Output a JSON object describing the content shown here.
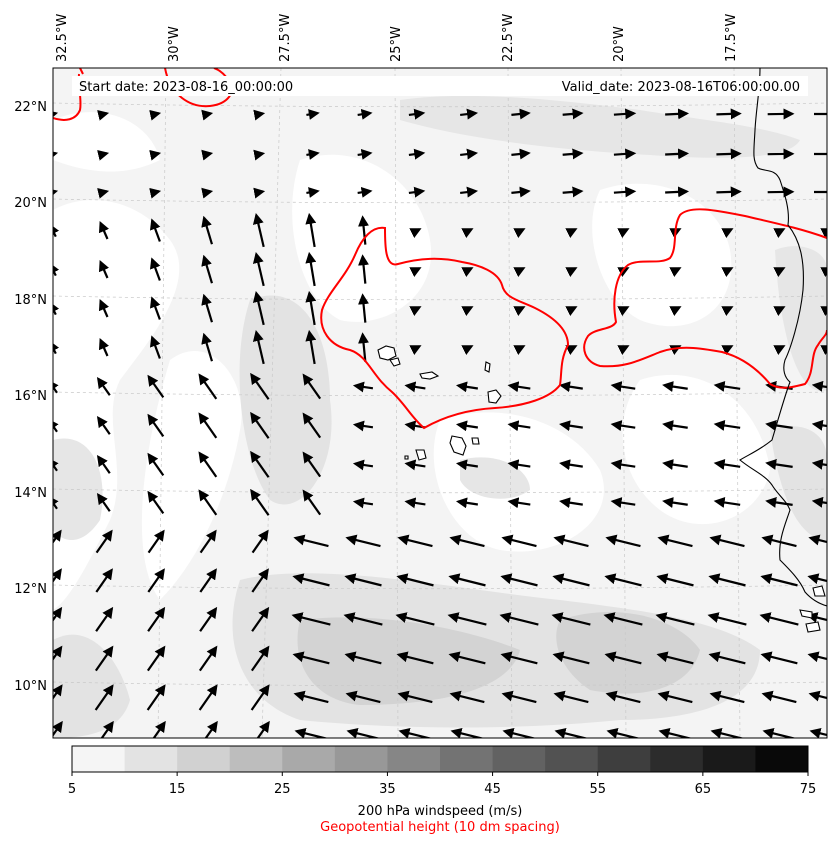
{
  "map": {
    "start_date_text": "Start date: 2023-08-16_00:00:00",
    "valid_date_text": "Valid_date: 2023-08-16T06:00:00.00",
    "longitude_labels": [
      "32.5°W",
      "30°W",
      "27.5°W",
      "25°W",
      "22.5°W",
      "20°W",
      "17.5°W"
    ],
    "latitude_labels": [
      "22°N",
      "20°N",
      "18°N",
      "16°N",
      "14°N",
      "12°N",
      "10°N"
    ],
    "contour_color": "#ff0000",
    "coastline_color": "#000000",
    "arrow_color": "#000000"
  },
  "colorbar": {
    "ticks": [
      "5",
      "15",
      "25",
      "35",
      "45",
      "55",
      "65",
      "75"
    ],
    "colors": [
      "#f5f5f5",
      "#e3e3e3",
      "#d1d1d1",
      "#bdbdbd",
      "#a9a9a9",
      "#989898",
      "#868686",
      "#737373",
      "#626262",
      "#525252",
      "#3e3e3e",
      "#2c2c2c",
      "#1a1a1a",
      "#090909"
    ],
    "label": "200 hPa windspeed (m/s)",
    "sublabel": "Geopotential height (10 dm spacing)",
    "sublabel_color": "#ff0000"
  }
}
